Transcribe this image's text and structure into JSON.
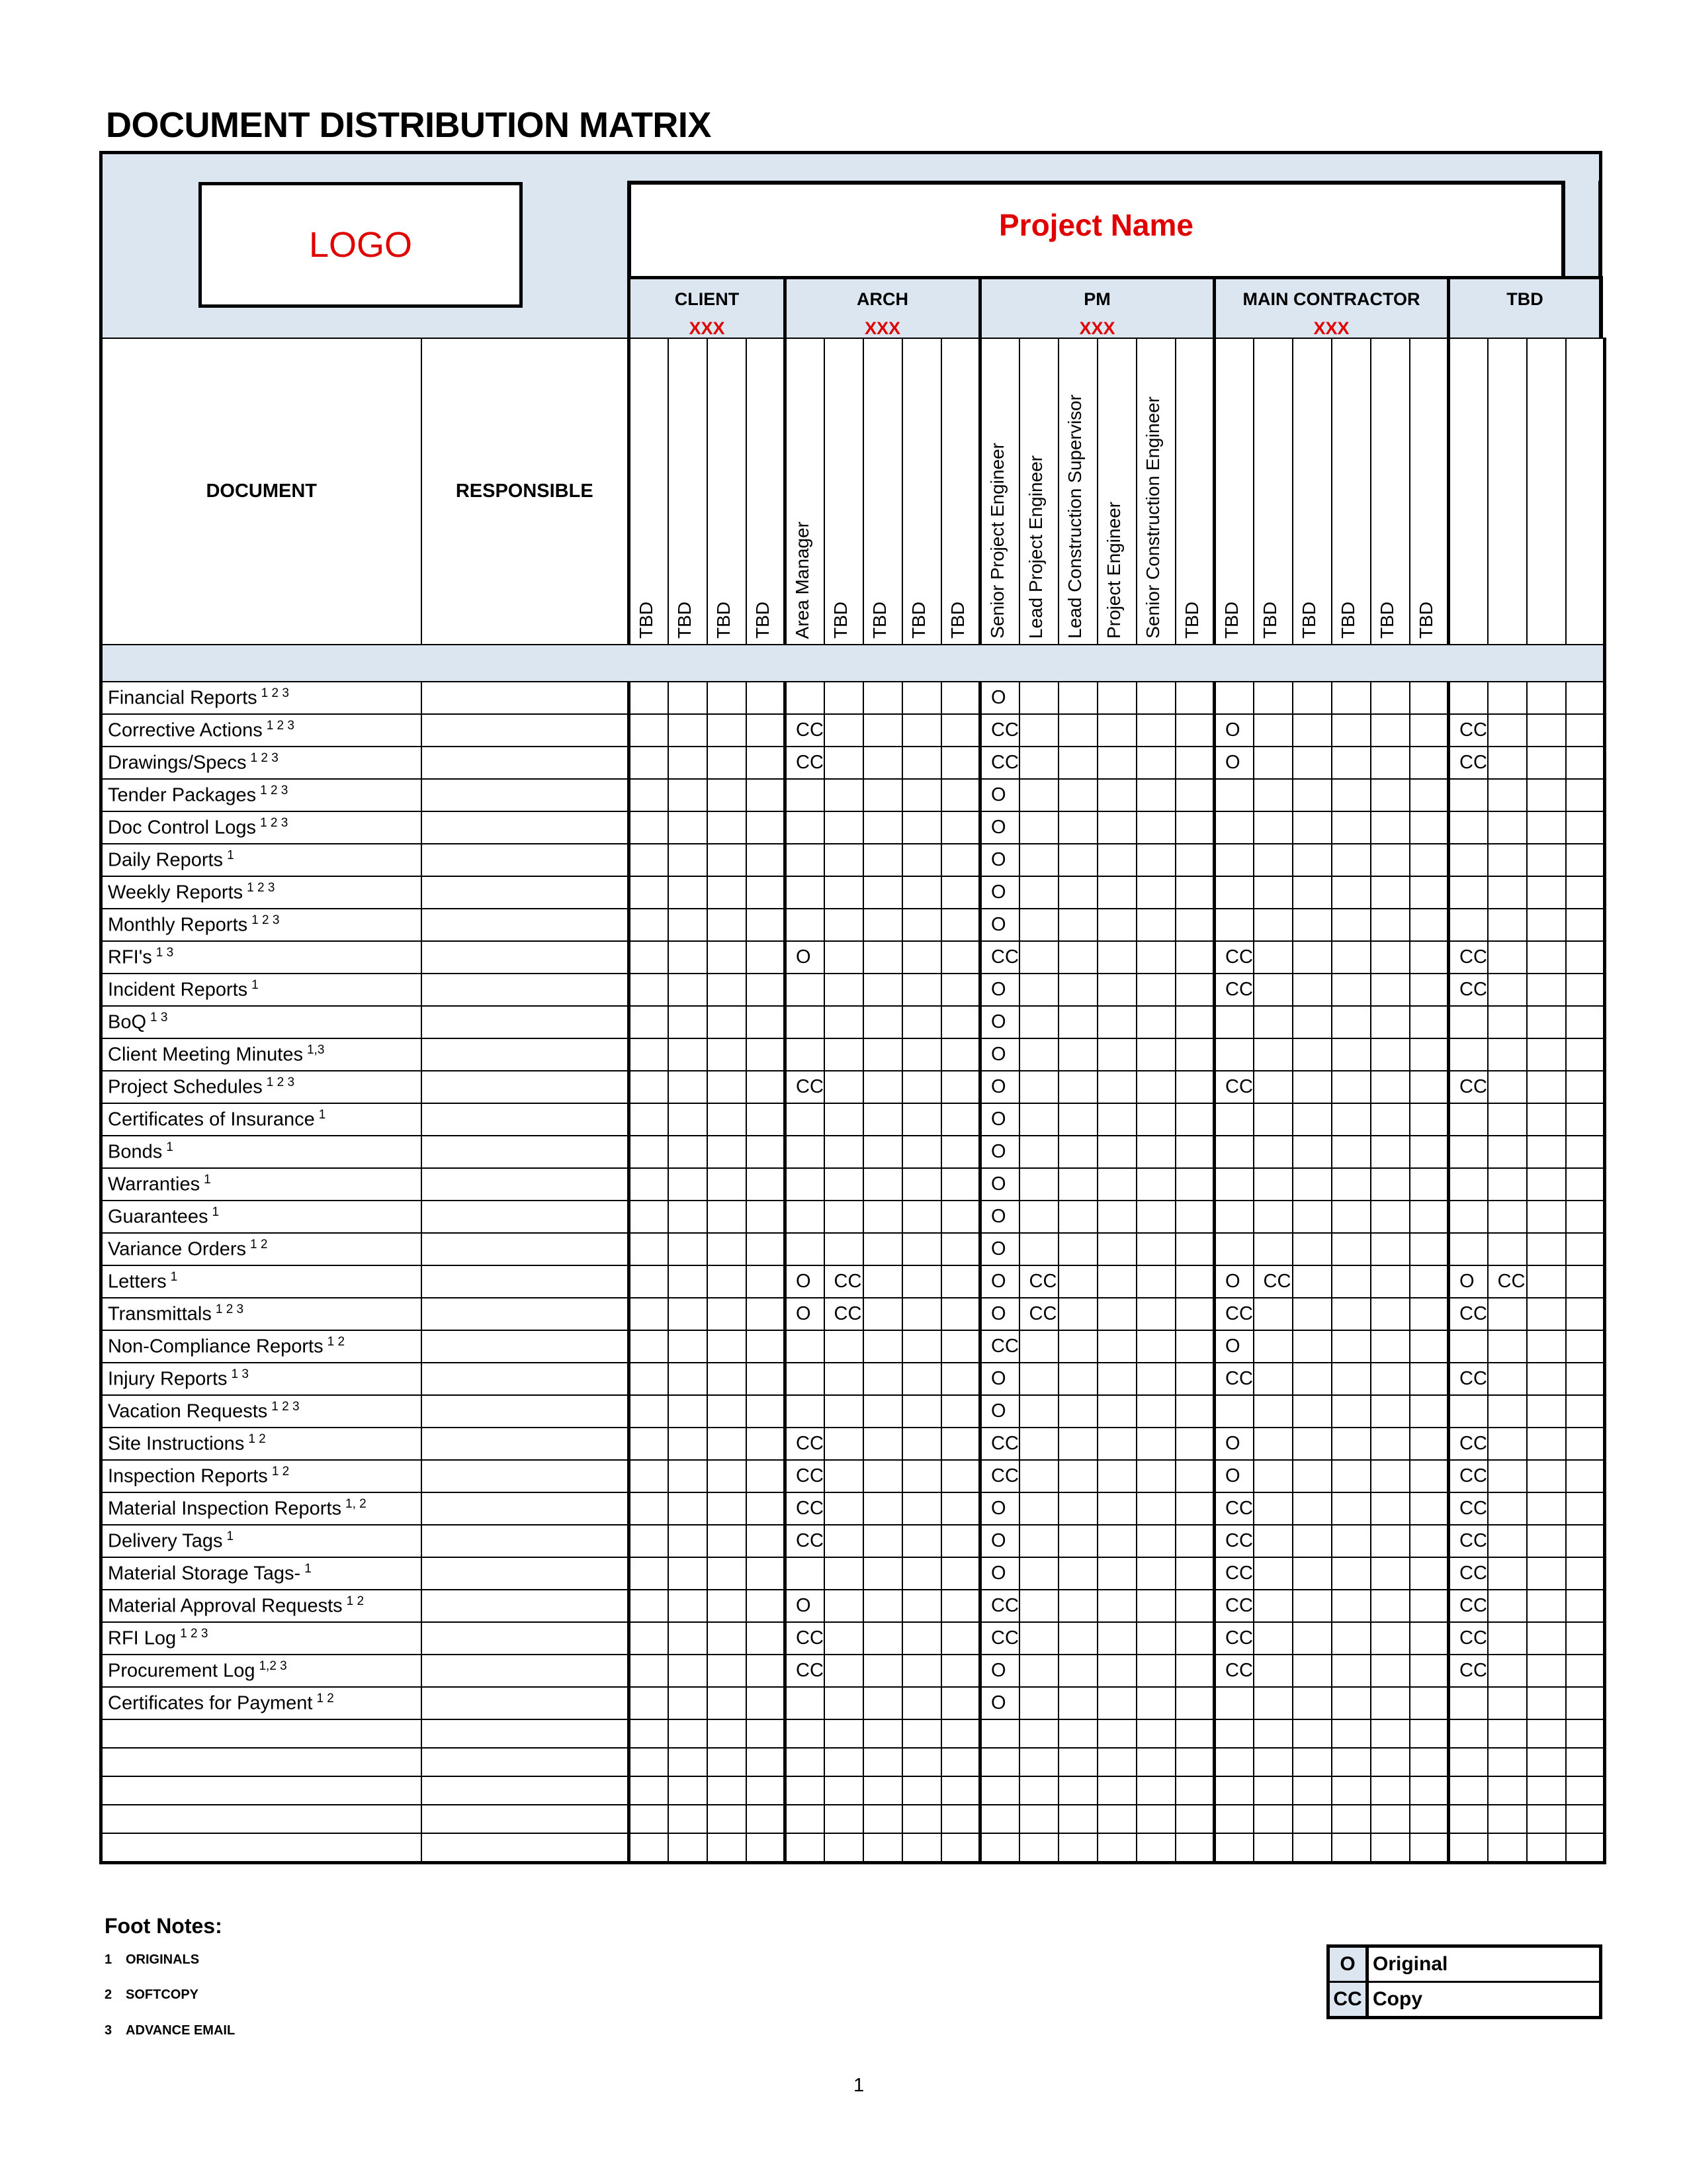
{
  "title": "DOCUMENT DISTRIBUTION MATRIX",
  "logo": "LOGO",
  "project_name": "Project Name",
  "colors": {
    "accent_red": "#e00000",
    "header_bg": "#dce6f1"
  },
  "headers": {
    "document": "DOCUMENT",
    "responsible": "RESPONSIBLE"
  },
  "groups": [
    {
      "name": "CLIENT",
      "sub": "XXX",
      "columns": [
        "TBD",
        "TBD",
        "TBD",
        "TBD"
      ]
    },
    {
      "name": "ARCH",
      "sub": "XXX",
      "columns": [
        "Area Manager",
        "TBD",
        "TBD",
        "TBD",
        "TBD"
      ]
    },
    {
      "name": "PM",
      "sub": "XXX",
      "columns": [
        "Senior Project Engineer",
        "Lead Project Engineer",
        "Lead Construction Supervisor",
        "Project Engineer",
        "Senior Construction Engineer",
        "TBD"
      ]
    },
    {
      "name": "MAIN CONTRACTOR",
      "sub": "XXX",
      "columns": [
        "TBD",
        "TBD",
        "TBD",
        "TBD",
        "TBD",
        "TBD"
      ]
    },
    {
      "name": "TBD",
      "sub": "",
      "columns": [
        "",
        "",
        "",
        ""
      ]
    }
  ],
  "rows": [
    {
      "doc": "Financial Reports",
      "sup": "1 2 3",
      "marks": {
        "9": "O"
      }
    },
    {
      "doc": "Corrective Actions",
      "sup": "1 2 3",
      "marks": {
        "4": "CC",
        "9": "CC",
        "15": "O",
        "21": "CC"
      }
    },
    {
      "doc": "Drawings/Specs",
      "sup": "1 2 3",
      "marks": {
        "4": "CC",
        "9": "CC",
        "15": "O",
        "21": "CC"
      }
    },
    {
      "doc": "Tender Packages",
      "sup": "1 2 3",
      "marks": {
        "9": "O"
      }
    },
    {
      "doc": "Doc Control Logs",
      "sup": "1 2 3",
      "marks": {
        "9": "O"
      }
    },
    {
      "doc": "Daily Reports",
      "sup": "1",
      "marks": {
        "9": "O"
      }
    },
    {
      "doc": "Weekly Reports",
      "sup": "1 2 3",
      "marks": {
        "9": "O"
      }
    },
    {
      "doc": "Monthly Reports",
      "sup": "1 2 3",
      "marks": {
        "9": "O"
      }
    },
    {
      "doc": "RFI's",
      "sup": "1 3",
      "marks": {
        "4": "O",
        "9": "CC",
        "15": "CC",
        "21": "CC"
      }
    },
    {
      "doc": "Incident Reports",
      "sup": "1",
      "marks": {
        "9": "O",
        "15": "CC",
        "21": "CC"
      }
    },
    {
      "doc": "BoQ",
      "sup": "1 3",
      "marks": {
        "9": "O"
      }
    },
    {
      "doc": "Client Meeting Minutes",
      "sup": "1,3",
      "marks": {
        "9": "O"
      }
    },
    {
      "doc": "Project Schedules",
      "sup": "1 2 3",
      "marks": {
        "4": "CC",
        "9": "O",
        "15": "CC",
        "21": "CC"
      }
    },
    {
      "doc": "Certificates of Insurance",
      "sup": "1",
      "marks": {
        "9": "O"
      }
    },
    {
      "doc": "Bonds",
      "sup": "1",
      "marks": {
        "9": "O"
      }
    },
    {
      "doc": "Warranties",
      "sup": "1",
      "marks": {
        "9": "O"
      }
    },
    {
      "doc": "Guarantees",
      "sup": "1",
      "marks": {
        "9": "O"
      }
    },
    {
      "doc": "Variance Orders",
      "sup": "1 2",
      "marks": {
        "9": "O"
      }
    },
    {
      "doc": "Letters",
      "sup": "1",
      "marks": {
        "4": "O",
        "5": "CC",
        "9": "O",
        "10": "CC",
        "15": "O",
        "16": "CC",
        "21": "O",
        "22": "CC"
      }
    },
    {
      "doc": "Transmittals",
      "sup": "1 2 3",
      "marks": {
        "4": "O",
        "5": "CC",
        "9": "O",
        "10": "CC",
        "15": "CC",
        "21": "CC"
      }
    },
    {
      "doc": "Non-Compliance Reports",
      "sup": "1 2",
      "marks": {
        "9": "CC",
        "15": "O"
      }
    },
    {
      "doc": "Injury Reports",
      "sup": "1 3",
      "marks": {
        "9": "O",
        "15": "CC",
        "21": "CC"
      }
    },
    {
      "doc": "Vacation Requests",
      "sup": "1 2 3",
      "marks": {
        "9": "O"
      }
    },
    {
      "doc": "Site Instructions",
      "sup": "1 2",
      "marks": {
        "4": "CC",
        "9": "CC",
        "15": "O",
        "21": "CC"
      }
    },
    {
      "doc": "Inspection Reports",
      "sup": "1 2",
      "marks": {
        "4": "CC",
        "9": "CC",
        "15": "O",
        "21": "CC"
      }
    },
    {
      "doc": "Material Inspection Reports",
      "sup": "1, 2",
      "marks": {
        "4": "CC",
        "9": "O",
        "15": "CC",
        "21": "CC"
      }
    },
    {
      "doc": "Delivery Tags",
      "sup": "1",
      "marks": {
        "4": "CC",
        "9": "O",
        "15": "CC",
        "21": "CC"
      }
    },
    {
      "doc": "Material Storage Tags-",
      "sup": "1",
      "marks": {
        "9": "O",
        "15": "CC",
        "21": "CC"
      }
    },
    {
      "doc": "Material Approval Requests",
      "sup": "1 2",
      "marks": {
        "4": "O",
        "9": "CC",
        "15": "CC",
        "21": "CC"
      }
    },
    {
      "doc": "RFI Log",
      "sup": "1 2 3",
      "marks": {
        "4": "CC",
        "9": "CC",
        "15": "CC",
        "21": "CC"
      }
    },
    {
      "doc": "Procurement Log",
      "sup": "1,2 3",
      "marks": {
        "4": "CC",
        "9": "O",
        "15": "CC",
        "21": "CC"
      }
    },
    {
      "doc": "Certificates for Payment",
      "sup": "1 2",
      "marks": {
        "9": "O"
      }
    }
  ],
  "footnotes": {
    "title": "Foot Notes:",
    "items": [
      {
        "num": "1",
        "text": "ORIGINALS"
      },
      {
        "num": "2",
        "text": "SOFTCOPY"
      },
      {
        "num": "3",
        "text": "ADVANCE EMAIL"
      }
    ]
  },
  "legend": [
    {
      "key": "O",
      "label": "Original"
    },
    {
      "key": "CC",
      "label": "Copy"
    }
  ],
  "page_number": "1"
}
